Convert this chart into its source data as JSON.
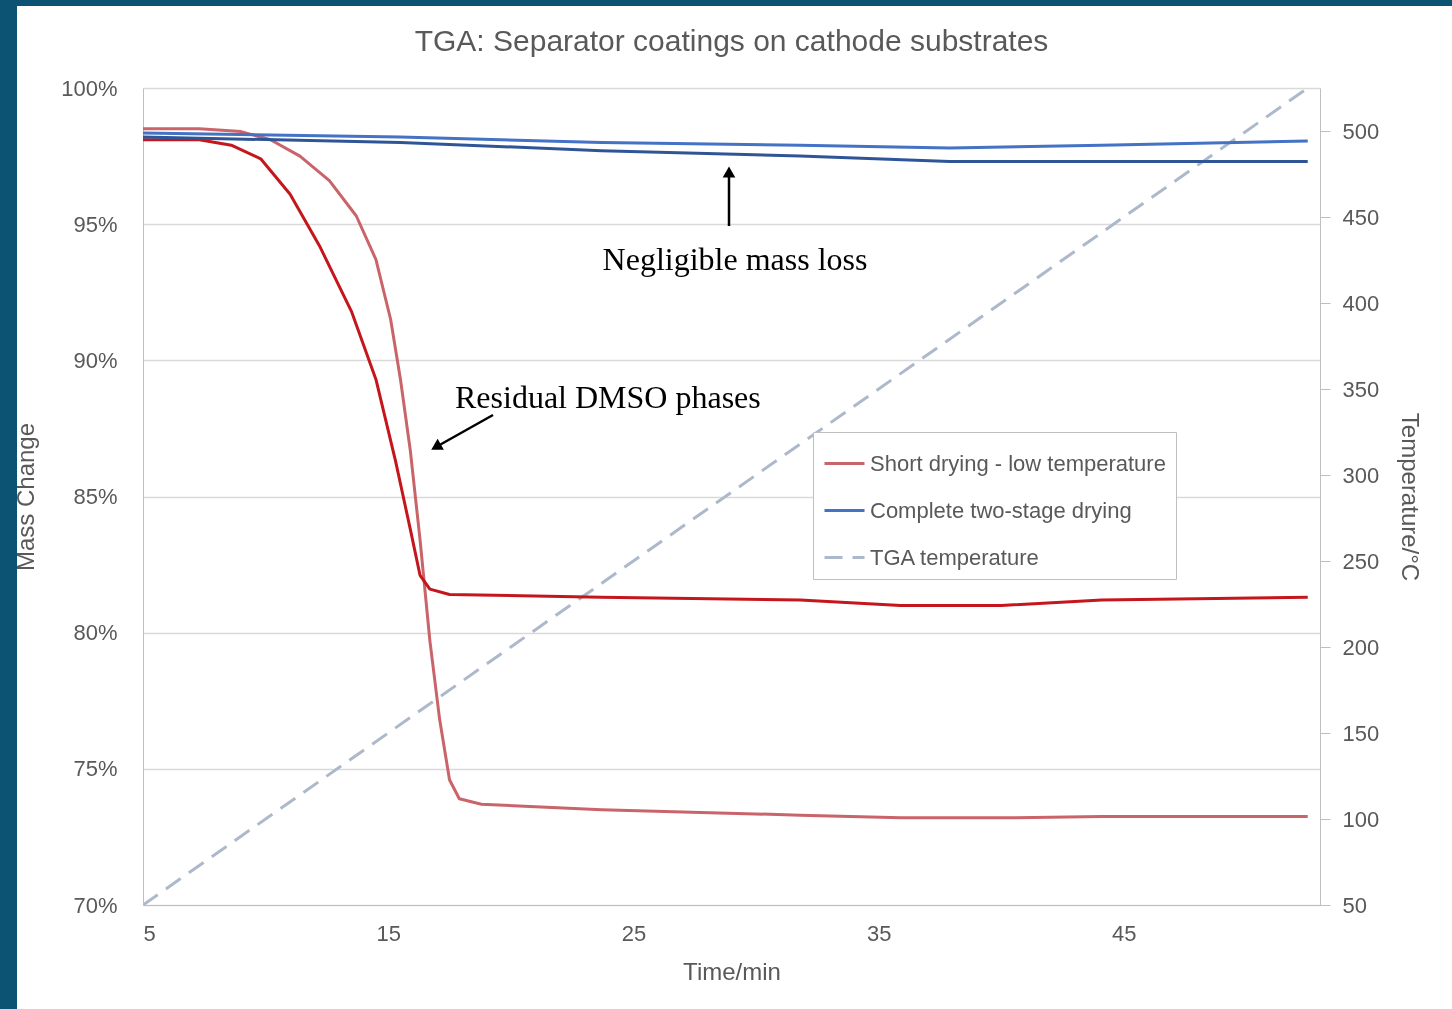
{
  "chart_data": {
    "type": "line",
    "title": "TGA: Separator coatings on cathode substrates",
    "xlabel": "Time/min",
    "ylabel": "Mass Change",
    "y2label": "Temperature/°C",
    "xlim": [
      5,
      53
    ],
    "xticks": [
      5,
      15,
      25,
      35,
      45
    ],
    "ylim": [
      70,
      100
    ],
    "yticks": [
      {
        "value": 70,
        "label": "70%"
      },
      {
        "value": 75,
        "label": "75%"
      },
      {
        "value": 80,
        "label": "80%"
      },
      {
        "value": 85,
        "label": "85%"
      },
      {
        "value": 90,
        "label": "90%"
      },
      {
        "value": 95,
        "label": "95%"
      },
      {
        "value": 100,
        "label": "100%"
      }
    ],
    "y2lim": [
      50,
      525
    ],
    "y2ticks": [
      50,
      100,
      150,
      200,
      250,
      300,
      350,
      400,
      450,
      500
    ],
    "grid": "y",
    "legend": "right",
    "series": [
      {
        "name": "Short drying - low temperature",
        "color": "#c9646a",
        "line_style": "solid",
        "x": [
          5,
          7.3,
          9,
          10.2,
          11.4,
          12.6,
          13.7,
          14.5,
          15.1,
          15.5,
          15.9,
          16.3,
          16.7,
          17.1,
          17.5,
          17.9,
          18.8,
          23.7,
          31.8,
          35.9,
          40,
          44.1,
          52.5
        ],
        "values": [
          98.5,
          98.5,
          98.4,
          98.1,
          97.5,
          96.6,
          95.3,
          93.7,
          91.5,
          89.3,
          86.7,
          83.4,
          79.7,
          76.8,
          74.6,
          73.9,
          73.7,
          73.5,
          73.3,
          73.2,
          73.2,
          73.25,
          73.25
        ]
      },
      {
        "color": "#c4161c",
        "line_style": "solid",
        "x": [
          5,
          7.3,
          8.6,
          9.8,
          11,
          12.2,
          13.5,
          14.5,
          15.3,
          15.9,
          16.3,
          16.7,
          17.5,
          23.7,
          31.8,
          35.9,
          40,
          44.1,
          52.5
        ],
        "values": [
          98.1,
          98.1,
          97.9,
          97.4,
          96.1,
          94.2,
          91.8,
          89.3,
          86.3,
          83.8,
          82.1,
          81.6,
          81.4,
          81.3,
          81.2,
          81,
          81,
          81.2,
          81.3
        ]
      },
      {
        "name": "Complete two-stage drying",
        "color": "#4472c4",
        "line_style": "solid",
        "x": [
          5,
          15.5,
          23.7,
          31.8,
          37.9,
          44.1,
          52.5
        ],
        "values": [
          98.35,
          98.2,
          98,
          97.9,
          97.8,
          97.9,
          98.05
        ]
      },
      {
        "color": "#2f5597",
        "line_style": "solid",
        "x": [
          5,
          15.5,
          23.7,
          31.8,
          37.9,
          44.1,
          52.5
        ],
        "values": [
          98.2,
          98,
          97.7,
          97.5,
          97.3,
          97.3,
          97.3
        ]
      },
      {
        "axis": "y2",
        "name": "TGA temperature",
        "color": "#adb9ca",
        "line_style": "dashed",
        "x": [
          5,
          52.5
        ],
        "values": [
          50,
          525
        ]
      }
    ],
    "annotations": [
      "Negligible mass loss",
      "Residual DMSO phases"
    ]
  }
}
